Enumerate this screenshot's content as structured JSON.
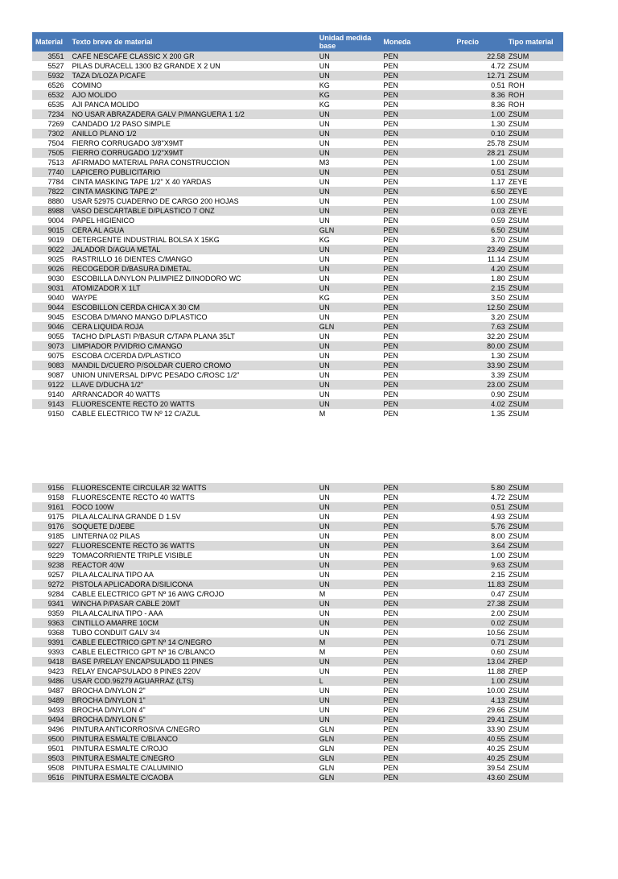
{
  "headers": {
    "material": "Material",
    "texto": "Texto breve de material",
    "um": "Unidad medida base",
    "moneda": "Moneda",
    "precio": "Precio",
    "tipo": "Tipo material"
  },
  "table1": [
    {
      "mat": "3551",
      "desc": "CAFE NESCAFE CLASSIC X 200 GR",
      "um": "UN",
      "mon": "PEN",
      "prc": "22.58",
      "tip": "ZSUM"
    },
    {
      "mat": "5527",
      "desc": "PILAS DURACELL 1300 B2 GRANDE X 2 UN",
      "um": "UN",
      "mon": "PEN",
      "prc": "4.72",
      "tip": "ZSUM"
    },
    {
      "mat": "5932",
      "desc": "TAZA D/LOZA P/CAFE",
      "um": "UN",
      "mon": "PEN",
      "prc": "12.71",
      "tip": "ZSUM"
    },
    {
      "mat": "6526",
      "desc": "COMINO",
      "um": "KG",
      "mon": "PEN",
      "prc": "0.51",
      "tip": "ROH"
    },
    {
      "mat": "6532",
      "desc": "AJO MOLIDO",
      "um": "KG",
      "mon": "PEN",
      "prc": "8.36",
      "tip": "ROH"
    },
    {
      "mat": "6535",
      "desc": "AJI PANCA MOLIDO",
      "um": "KG",
      "mon": "PEN",
      "prc": "8.36",
      "tip": "ROH"
    },
    {
      "mat": "7234",
      "desc": "NO USAR ABRAZADERA GALV P/MANGUERA 1 1/2",
      "um": "UN",
      "mon": "PEN",
      "prc": "1.00",
      "tip": "ZSUM"
    },
    {
      "mat": "7269",
      "desc": "CANDADO 1/2 PASO SIMPLE",
      "um": "UN",
      "mon": "PEN",
      "prc": "1.30",
      "tip": "ZSUM"
    },
    {
      "mat": "7302",
      "desc": "ANILLO PLANO 1/2",
      "um": "UN",
      "mon": "PEN",
      "prc": "0.10",
      "tip": "ZSUM"
    },
    {
      "mat": "7504",
      "desc": "FIERRO CORRUGADO 3/8\"X9MT",
      "um": "UN",
      "mon": "PEN",
      "prc": "25.78",
      "tip": "ZSUM"
    },
    {
      "mat": "7505",
      "desc": "FIERRO CORRUGADO 1/2\"X9MT",
      "um": "UN",
      "mon": "PEN",
      "prc": "28.21",
      "tip": "ZSUM"
    },
    {
      "mat": "7513",
      "desc": "AFIRMADO MATERIAL PARA CONSTRUCCION",
      "um": "M3",
      "mon": "PEN",
      "prc": "1.00",
      "tip": "ZSUM"
    },
    {
      "mat": "7740",
      "desc": "LAPICERO PUBLICITARIO",
      "um": "UN",
      "mon": "PEN",
      "prc": "0.51",
      "tip": "ZSUM"
    },
    {
      "mat": "7784",
      "desc": "CINTA MASKING TAPE 1/2\" X 40 YARDAS",
      "um": "UN",
      "mon": "PEN",
      "prc": "1.17",
      "tip": "ZEYE"
    },
    {
      "mat": "7822",
      "desc": "CINTA MASKING TAPE 2\"",
      "um": "UN",
      "mon": "PEN",
      "prc": "6.50",
      "tip": "ZEYE"
    },
    {
      "mat": "8880",
      "desc": "USAR 52975 CUADERNO DE CARGO 200 HOJAS",
      "um": "UN",
      "mon": "PEN",
      "prc": "1.00",
      "tip": "ZSUM"
    },
    {
      "mat": "8988",
      "desc": "VASO DESCARTABLE D/PLASTICO 7 ONZ",
      "um": "UN",
      "mon": "PEN",
      "prc": "0.03",
      "tip": "ZEYE"
    },
    {
      "mat": "9004",
      "desc": "PAPEL HIGIENICO",
      "um": "UN",
      "mon": "PEN",
      "prc": "0.59",
      "tip": "ZSUM"
    },
    {
      "mat": "9015",
      "desc": "CERA AL AGUA",
      "um": "GLN",
      "mon": "PEN",
      "prc": "6.50",
      "tip": "ZSUM"
    },
    {
      "mat": "9019",
      "desc": "DETERGENTE INDUSTRIAL BOLSA X 15KG",
      "um": "KG",
      "mon": "PEN",
      "prc": "3.70",
      "tip": "ZSUM"
    },
    {
      "mat": "9022",
      "desc": "JALADOR D/AGUA METAL",
      "um": "UN",
      "mon": "PEN",
      "prc": "23.49",
      "tip": "ZSUM"
    },
    {
      "mat": "9025",
      "desc": "RASTRILLO 16 DIENTES C/MANGO",
      "um": "UN",
      "mon": "PEN",
      "prc": "11.14",
      "tip": "ZSUM"
    },
    {
      "mat": "9026",
      "desc": "RECOGEDOR D/BASURA D/METAL",
      "um": "UN",
      "mon": "PEN",
      "prc": "4.20",
      "tip": "ZSUM"
    },
    {
      "mat": "9030",
      "desc": "ESCOBILLA D/NYLON P/LIMPIEZ D/INODORO WC",
      "um": "UN",
      "mon": "PEN",
      "prc": "1.80",
      "tip": "ZSUM"
    },
    {
      "mat": "9031",
      "desc": "ATOMIZADOR X 1LT",
      "um": "UN",
      "mon": "PEN",
      "prc": "2.15",
      "tip": "ZSUM"
    },
    {
      "mat": "9040",
      "desc": "WAYPE",
      "um": "KG",
      "mon": "PEN",
      "prc": "3.50",
      "tip": "ZSUM"
    },
    {
      "mat": "9044",
      "desc": "ESCOBILLON CERDA CHICA X 30 CM",
      "um": "UN",
      "mon": "PEN",
      "prc": "12.50",
      "tip": "ZSUM"
    },
    {
      "mat": "9045",
      "desc": "ESCOBA D/MANO MANGO D/PLASTICO",
      "um": "UN",
      "mon": "PEN",
      "prc": "3.20",
      "tip": "ZSUM"
    },
    {
      "mat": "9046",
      "desc": "CERA LIQUIDA ROJA",
      "um": "GLN",
      "mon": "PEN",
      "prc": "7.63",
      "tip": "ZSUM"
    },
    {
      "mat": "9055",
      "desc": "TACHO D/PLASTI P/BASUR C/TAPA PLANA 35LT",
      "um": "UN",
      "mon": "PEN",
      "prc": "32.20",
      "tip": "ZSUM"
    },
    {
      "mat": "9073",
      "desc": "LIMPIADOR P/VIDRIO C/MANGO",
      "um": "UN",
      "mon": "PEN",
      "prc": "80.00",
      "tip": "ZSUM"
    },
    {
      "mat": "9075",
      "desc": "ESCOBA C/CERDA D/PLASTICO",
      "um": "UN",
      "mon": "PEN",
      "prc": "1.30",
      "tip": "ZSUM"
    },
    {
      "mat": "9083",
      "desc": "MANDIL D/CUERO P/SOLDAR CUERO CROMO",
      "um": "UN",
      "mon": "PEN",
      "prc": "33.90",
      "tip": "ZSUM"
    },
    {
      "mat": "9087",
      "desc": "UNION UNIVERSAL D/PVC PESADO C/ROSC 1/2\"",
      "um": "UN",
      "mon": "PEN",
      "prc": "3.39",
      "tip": "ZSUM"
    },
    {
      "mat": "9122",
      "desc": "LLAVE D/DUCHA 1/2\"",
      "um": "UN",
      "mon": "PEN",
      "prc": "23.00",
      "tip": "ZSUM"
    },
    {
      "mat": "9140",
      "desc": "ARRANCADOR 40 WATTS",
      "um": "UN",
      "mon": "PEN",
      "prc": "0.90",
      "tip": "ZSUM"
    },
    {
      "mat": "9143",
      "desc": "FLUORESCENTE RECTO 20 WATTS",
      "um": "UN",
      "mon": "PEN",
      "prc": "4.02",
      "tip": "ZSUM"
    },
    {
      "mat": "9150",
      "desc": "CABLE ELECTRICO TW Nº 12 C/AZUL",
      "um": "M",
      "mon": "PEN",
      "prc": "1.35",
      "tip": "ZSUM"
    }
  ],
  "table2": [
    {
      "mat": "9156",
      "desc": "FLUORESCENTE CIRCULAR 32 WATTS",
      "um": "UN",
      "mon": "PEN",
      "prc": "5.80",
      "tip": "ZSUM"
    },
    {
      "mat": "9158",
      "desc": "FLUORESCENTE RECTO 40 WATTS",
      "um": "UN",
      "mon": "PEN",
      "prc": "4.72",
      "tip": "ZSUM"
    },
    {
      "mat": "9161",
      "desc": "FOCO 100W",
      "um": "UN",
      "mon": "PEN",
      "prc": "0.51",
      "tip": "ZSUM"
    },
    {
      "mat": "9175",
      "desc": "PILA ALCALINA GRANDE D 1.5V",
      "um": "UN",
      "mon": "PEN",
      "prc": "4.93",
      "tip": "ZSUM"
    },
    {
      "mat": "9176",
      "desc": "SOQUETE D/JEBE",
      "um": "UN",
      "mon": "PEN",
      "prc": "5.76",
      "tip": "ZSUM"
    },
    {
      "mat": "9185",
      "desc": "LINTERNA 02 PILAS",
      "um": "UN",
      "mon": "PEN",
      "prc": "8.00",
      "tip": "ZSUM"
    },
    {
      "mat": "9227",
      "desc": "FLUORESCENTE RECTO 36 WATTS",
      "um": "UN",
      "mon": "PEN",
      "prc": "3.64",
      "tip": "ZSUM"
    },
    {
      "mat": "9229",
      "desc": "TOMACORRIENTE TRIPLE VISIBLE",
      "um": "UN",
      "mon": "PEN",
      "prc": "1.00",
      "tip": "ZSUM"
    },
    {
      "mat": "9238",
      "desc": "REACTOR 40W",
      "um": "UN",
      "mon": "PEN",
      "prc": "9.63",
      "tip": "ZSUM"
    },
    {
      "mat": "9257",
      "desc": "PILA ALCALINA TIPO AA",
      "um": "UN",
      "mon": "PEN",
      "prc": "2.15",
      "tip": "ZSUM"
    },
    {
      "mat": "9272",
      "desc": "PISTOLA APLICADORA D/SILICONA",
      "um": "UN",
      "mon": "PEN",
      "prc": "11.83",
      "tip": "ZSUM"
    },
    {
      "mat": "9284",
      "desc": "CABLE ELECTRICO GPT Nº 16 AWG C/ROJO",
      "um": "M",
      "mon": "PEN",
      "prc": "0.47",
      "tip": "ZSUM"
    },
    {
      "mat": "9341",
      "desc": "WINCHA P/PASAR CABLE 20MT",
      "um": "UN",
      "mon": "PEN",
      "prc": "27.38",
      "tip": "ZSUM"
    },
    {
      "mat": "9359",
      "desc": "PILA ALCALINA TIPO - AAA",
      "um": "UN",
      "mon": "PEN",
      "prc": "2.00",
      "tip": "ZSUM"
    },
    {
      "mat": "9363",
      "desc": "CINTILLO AMARRE 10CM",
      "um": "UN",
      "mon": "PEN",
      "prc": "0.02",
      "tip": "ZSUM"
    },
    {
      "mat": "9368",
      "desc": "TUBO CONDUIT GALV 3/4",
      "um": "UN",
      "mon": "PEN",
      "prc": "10.56",
      "tip": "ZSUM"
    },
    {
      "mat": "9391",
      "desc": "CABLE ELECTRICO GPT Nº 14 C/NEGRO",
      "um": "M",
      "mon": "PEN",
      "prc": "0.71",
      "tip": "ZSUM"
    },
    {
      "mat": "9393",
      "desc": "CABLE ELECTRICO GPT Nº 16 C/BLANCO",
      "um": "M",
      "mon": "PEN",
      "prc": "0.60",
      "tip": "ZSUM"
    },
    {
      "mat": "9418",
      "desc": "BASE P/RELAY ENCAPSULADO 11 PINES",
      "um": "UN",
      "mon": "PEN",
      "prc": "13.04",
      "tip": "ZREP"
    },
    {
      "mat": "9423",
      "desc": "RELAY ENCAPSULADO 8 PINES 220V",
      "um": "UN",
      "mon": "PEN",
      "prc": "11.88",
      "tip": "ZREP"
    },
    {
      "mat": "9486",
      "desc": "USAR COD.96279 AGUARRAZ (LTS)",
      "um": "L",
      "mon": "PEN",
      "prc": "1.00",
      "tip": "ZSUM"
    },
    {
      "mat": "9487",
      "desc": "BROCHA D/NYLON 2\"",
      "um": "UN",
      "mon": "PEN",
      "prc": "10.00",
      "tip": "ZSUM"
    },
    {
      "mat": "9489",
      "desc": "BROCHA D/NYLON 1\"",
      "um": "UN",
      "mon": "PEN",
      "prc": "4.13",
      "tip": "ZSUM"
    },
    {
      "mat": "9493",
      "desc": "BROCHA D/NYLON 4\"",
      "um": "UN",
      "mon": "PEN",
      "prc": "29.66",
      "tip": "ZSUM"
    },
    {
      "mat": "9494",
      "desc": "BROCHA D/NYLON 5\"",
      "um": "UN",
      "mon": "PEN",
      "prc": "29.41",
      "tip": "ZSUM"
    },
    {
      "mat": "9496",
      "desc": "PINTURA ANTICORROSIVA C/NEGRO",
      "um": "GLN",
      "mon": "PEN",
      "prc": "33.90",
      "tip": "ZSUM"
    },
    {
      "mat": "9500",
      "desc": "PINTURA ESMALTE C/BLANCO",
      "um": "GLN",
      "mon": "PEN",
      "prc": "40.55",
      "tip": "ZSUM"
    },
    {
      "mat": "9501",
      "desc": "PINTURA ESMALTE C/ROJO",
      "um": "GLN",
      "mon": "PEN",
      "prc": "40.25",
      "tip": "ZSUM"
    },
    {
      "mat": "9503",
      "desc": "PINTURA ESMALTE C/NEGRO",
      "um": "GLN",
      "mon": "PEN",
      "prc": "40.25",
      "tip": "ZSUM"
    },
    {
      "mat": "9508",
      "desc": "PINTURA ESMALTE C/ALUMINIO",
      "um": "GLN",
      "mon": "PEN",
      "prc": "39.54",
      "tip": "ZSUM"
    },
    {
      "mat": "9516",
      "desc": "PINTURA ESMALTE C/CAOBA",
      "um": "GLN",
      "mon": "PEN",
      "prc": "43.60",
      "tip": "ZSUM"
    }
  ]
}
